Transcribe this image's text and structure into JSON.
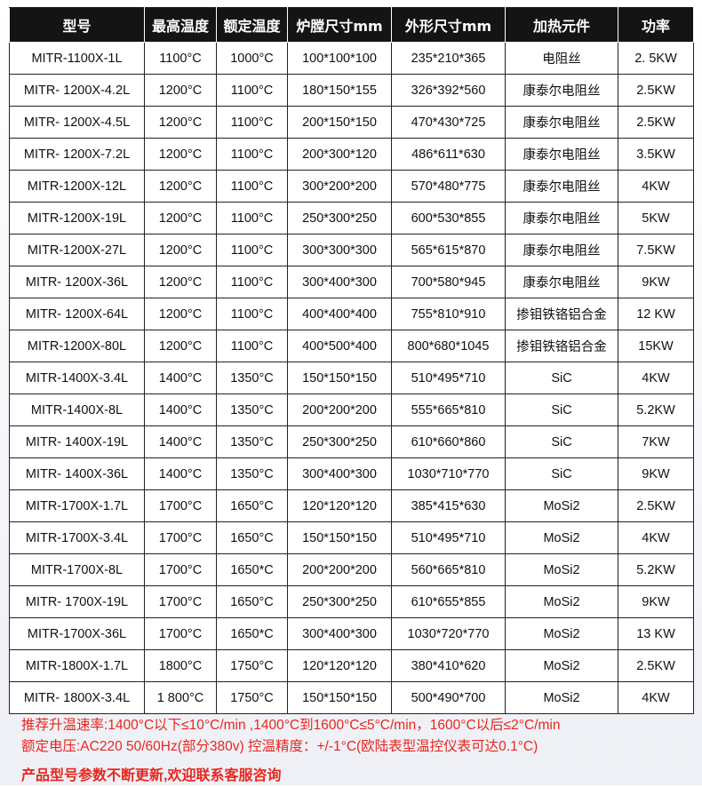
{
  "headers": [
    "型号",
    "最高温度",
    "额定温度",
    "炉膛尺寸mm",
    "外形尺寸mm",
    "加热元件",
    "功率"
  ],
  "rows": [
    [
      "MITR-1100X-1L",
      "1100°C",
      "1000°C",
      "100*100*100",
      "235*210*365",
      "电阻丝",
      "2. 5KW"
    ],
    [
      "MITR- 1200X-4.2L",
      "1200°C",
      "1100°C",
      "180*150*155",
      "326*392*560",
      "康泰尔电阻丝",
      "2.5KW"
    ],
    [
      "MITR- 1200X-4.5L",
      "1200°C",
      "1100°C",
      "200*150*150",
      "470*430*725",
      "康泰尔电阻丝",
      "2.5KW"
    ],
    [
      "MITR- 1200X-7.2L",
      "1200°C",
      "1100°C",
      "200*300*120",
      "486*611*630",
      "康泰尔电阻丝",
      "3.5KW"
    ],
    [
      "MITR-1200X-12L",
      "1200°C",
      "1100°C",
      "300*200*200",
      "570*480*775",
      "康泰尔电阻丝",
      "4KW"
    ],
    [
      "MITR-1200X-19L",
      "1200°C",
      "1100°C",
      "250*300*250",
      "600*530*855",
      "康泰尔电阻丝",
      "5KW"
    ],
    [
      "MITR-1200X-27L",
      "1200°C",
      "1100°C",
      "300*300*300",
      "565*615*870",
      "康泰尔电阻丝",
      "7.5KW"
    ],
    [
      "MITR- 1200X-36L",
      "1200°C",
      "1100°C",
      "300*400*300",
      "700*580*945",
      "康泰尔电阻丝",
      "9KW"
    ],
    [
      "MITR- 1200X-64L",
      "1200°C",
      "1100°C",
      "400*400*400",
      "755*810*910",
      "掺钼铁铬铝合金",
      "12 KW"
    ],
    [
      "MITR-1200X-80L",
      "1200°C",
      "1100°C",
      "400*500*400",
      "800*680*1045",
      "掺钼铁铬铝合金",
      "15KW"
    ],
    [
      "MITR-1400X-3.4L",
      "1400°C",
      "1350°C",
      "150*150*150",
      "510*495*710",
      "SiC",
      "4KW"
    ],
    [
      "MITR-1400X-8L",
      "1400°C",
      "1350°C",
      "200*200*200",
      "555*665*810",
      "SiC",
      "5.2KW"
    ],
    [
      "MITR- 1400X-19L",
      "1400°C",
      "1350°C",
      "250*300*250",
      "610*660*860",
      "SiC",
      "7KW"
    ],
    [
      "MITR- 1400X-36L",
      "1400°C",
      "1350°C",
      "300*400*300",
      "1030*710*770",
      "SiC",
      "9KW"
    ],
    [
      "MITR-1700X-1.7L",
      "1700°C",
      "1650°C",
      "120*120*120",
      "385*415*630",
      "MoSi2",
      "2.5KW"
    ],
    [
      "MITR-1700X-3.4L",
      "1700°C",
      "1650°C",
      "150*150*150",
      "510*495*710",
      "MoSi2",
      "4KW"
    ],
    [
      "MITR-1700X-8L",
      "1700°C",
      "1650*C",
      "200*200*200",
      "560*665*810",
      "MoSi2",
      "5.2KW"
    ],
    [
      "MITR- 1700X-19L",
      "1700°C",
      "1650°C",
      "250*300*250",
      "610*655*855",
      "MoSi2",
      "9KW"
    ],
    [
      "MITR-1700X-36L",
      "1700°C",
      "1650*C",
      "300*400*300",
      "1030*720*770",
      "MoSi2",
      "13 KW"
    ],
    [
      "MITR-1800X-1.7L",
      "1800°C",
      "1750°C",
      "120*120*120",
      "380*410*620",
      "MoSi2",
      "2.5KW"
    ],
    [
      "MITR- 1800X-3.4L",
      "1 800°C",
      "1750°C",
      "150*150*150",
      "500*490*700",
      "MoSi2",
      "4KW"
    ]
  ],
  "notes": {
    "line1": "推荐升温速率:1400°C以下≤10°C/min ,1400°C到1600°C≤5°C/min，1600°C以后≤2°C/min",
    "line2": "额定电压:AC220 50/60Hz(部分380v)    控温精度：+/-1°C(欧陆表型温控仪表可达0.1°C)",
    "line3": "产品型号参数不断更新,欢迎联系客服咨询"
  },
  "colors": {
    "header_bg": "#141414",
    "note_text": "#e8261e"
  }
}
